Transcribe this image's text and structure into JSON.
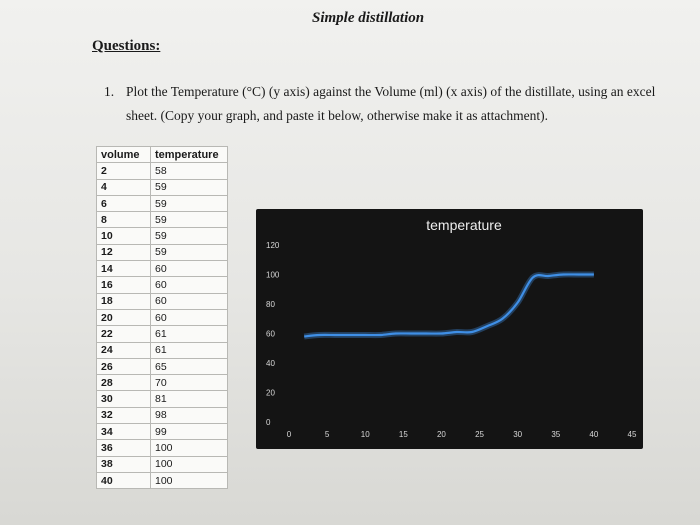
{
  "document": {
    "title": "Simple distillation",
    "questions_heading": "Questions:",
    "question_number": "1.",
    "question_text": "Plot the Temperature (°C) (y axis) against the Volume (ml) (x axis) of the distillate, using an excel sheet. (Copy your graph, and paste it below, otherwise make it as attachment)."
  },
  "table": {
    "headers": [
      "volume",
      "temperature"
    ],
    "rows": [
      [
        "2",
        "58"
      ],
      [
        "4",
        "59"
      ],
      [
        "6",
        "59"
      ],
      [
        "8",
        "59"
      ],
      [
        "10",
        "59"
      ],
      [
        "12",
        "59"
      ],
      [
        "14",
        "60"
      ],
      [
        "16",
        "60"
      ],
      [
        "18",
        "60"
      ],
      [
        "20",
        "60"
      ],
      [
        "22",
        "61"
      ],
      [
        "24",
        "61"
      ],
      [
        "26",
        "65"
      ],
      [
        "28",
        "70"
      ],
      [
        "30",
        "81"
      ],
      [
        "32",
        "98"
      ],
      [
        "34",
        "99"
      ],
      [
        "36",
        "100"
      ],
      [
        "38",
        "100"
      ],
      [
        "40",
        "100"
      ]
    ]
  },
  "chart_data": {
    "type": "line",
    "title": "temperature",
    "x": [
      2,
      4,
      6,
      8,
      10,
      12,
      14,
      16,
      18,
      20,
      22,
      24,
      26,
      28,
      30,
      32,
      34,
      36,
      38,
      40
    ],
    "series": [
      {
        "values": [
          58,
          59,
          59,
          59,
          59,
          59,
          60,
          60,
          60,
          60,
          61,
          61,
          65,
          70,
          81,
          98,
          99,
          100,
          100,
          100
        ]
      }
    ],
    "xlim": [
      0,
      45
    ],
    "ylim": [
      0,
      120
    ],
    "x_ticks": [
      "0",
      "5",
      "10",
      "15",
      "20",
      "25",
      "30",
      "35",
      "40",
      "45"
    ],
    "y_ticks": [
      "0",
      "20",
      "40",
      "60",
      "80",
      "100",
      "120"
    ],
    "grid": false,
    "colors": {
      "background": "#141414",
      "line": "#3f8fe6",
      "text": "#d8d8d8"
    }
  }
}
